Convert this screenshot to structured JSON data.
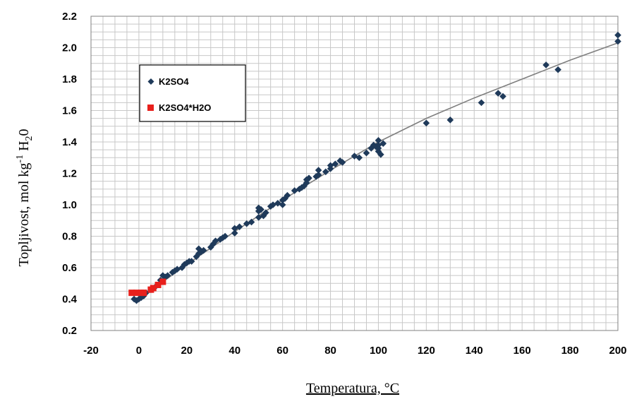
{
  "chart_data": {
    "type": "scatter",
    "xlabel": "Temperatura, °C",
    "ylabel": "Topljivost, mol kg",
    "ylabel_sup": "-1",
    "ylabel_tail": " H",
    "ylabel_sub": "2",
    "ylabel_end": "0",
    "xlim": [
      -20,
      200
    ],
    "ylim": [
      0.2,
      2.2
    ],
    "xticks": [
      "-20",
      "0",
      "20",
      "40",
      "60",
      "80",
      "100",
      "120",
      "140",
      "160",
      "180",
      "200"
    ],
    "yticks": [
      "0.2",
      "0.4",
      "0.6",
      "0.8",
      "1.0",
      "1.2",
      "1.4",
      "1.6",
      "1.8",
      "2.0",
      "2.2"
    ],
    "grid": true,
    "legend_position": "top-left",
    "series": [
      {
        "name": "K2SO4",
        "color": "#1f3a5a",
        "marker": "diamond",
        "points": [
          [
            -2,
            0.4
          ],
          [
            -1,
            0.39
          ],
          [
            0,
            0.4
          ],
          [
            1,
            0.41
          ],
          [
            2,
            0.42
          ],
          [
            3,
            0.44
          ],
          [
            5,
            0.46
          ],
          [
            7,
            0.48
          ],
          [
            9,
            0.52
          ],
          [
            10,
            0.55
          ],
          [
            11,
            0.54
          ],
          [
            12,
            0.55
          ],
          [
            14,
            0.57
          ],
          [
            15,
            0.58
          ],
          [
            16,
            0.59
          ],
          [
            18,
            0.6
          ],
          [
            19,
            0.62
          ],
          [
            20,
            0.63
          ],
          [
            21,
            0.64
          ],
          [
            22,
            0.64
          ],
          [
            24,
            0.67
          ],
          [
            25,
            0.69
          ],
          [
            25,
            0.72
          ],
          [
            26,
            0.7
          ],
          [
            27,
            0.71
          ],
          [
            30,
            0.73
          ],
          [
            31,
            0.75
          ],
          [
            32,
            0.77
          ],
          [
            34,
            0.78
          ],
          [
            35,
            0.79
          ],
          [
            36,
            0.8
          ],
          [
            40,
            0.82
          ],
          [
            40,
            0.85
          ],
          [
            42,
            0.86
          ],
          [
            45,
            0.88
          ],
          [
            47,
            0.89
          ],
          [
            50,
            0.92
          ],
          [
            50,
            0.96
          ],
          [
            50,
            0.98
          ],
          [
            51,
            0.97
          ],
          [
            52,
            0.93
          ],
          [
            53,
            0.95
          ],
          [
            55,
            0.99
          ],
          [
            56,
            1.0
          ],
          [
            58,
            1.01
          ],
          [
            60,
            1.0
          ],
          [
            60,
            1.03
          ],
          [
            61,
            1.04
          ],
          [
            62,
            1.06
          ],
          [
            65,
            1.09
          ],
          [
            67,
            1.1
          ],
          [
            68,
            1.11
          ],
          [
            69,
            1.12
          ],
          [
            70,
            1.14
          ],
          [
            70,
            1.16
          ],
          [
            71,
            1.17
          ],
          [
            74,
            1.18
          ],
          [
            75,
            1.19
          ],
          [
            75,
            1.22
          ],
          [
            78,
            1.21
          ],
          [
            80,
            1.23
          ],
          [
            80,
            1.25
          ],
          [
            82,
            1.26
          ],
          [
            84,
            1.28
          ],
          [
            85,
            1.27
          ],
          [
            90,
            1.31
          ],
          [
            92,
            1.3
          ],
          [
            95,
            1.33
          ],
          [
            97,
            1.36
          ],
          [
            98,
            1.38
          ],
          [
            99,
            1.37
          ],
          [
            100,
            1.34
          ],
          [
            100,
            1.36
          ],
          [
            100,
            1.38
          ],
          [
            100,
            1.41
          ],
          [
            101,
            1.32
          ],
          [
            102,
            1.39
          ],
          [
            120,
            1.52
          ],
          [
            130,
            1.54
          ],
          [
            143,
            1.65
          ],
          [
            150,
            1.71
          ],
          [
            152,
            1.69
          ],
          [
            170,
            1.89
          ],
          [
            175,
            1.86
          ],
          [
            200,
            2.04
          ],
          [
            200,
            2.08
          ]
        ]
      },
      {
        "name": "K2SO4*H2O",
        "color": "#e8201c",
        "marker": "square",
        "points": [
          [
            -3,
            0.44
          ],
          [
            -1,
            0.44
          ],
          [
            1,
            0.44
          ],
          [
            2,
            0.44
          ],
          [
            5,
            0.46
          ],
          [
            6,
            0.47
          ],
          [
            8,
            0.49
          ],
          [
            10,
            0.51
          ]
        ]
      }
    ],
    "trend_line": {
      "color": "#7f7f7f",
      "x": [
        -2,
        10,
        20,
        40,
        60,
        80,
        100,
        120,
        140,
        160,
        180,
        200
      ],
      "y": [
        0.39,
        0.51,
        0.62,
        0.83,
        1.03,
        1.22,
        1.4,
        1.55,
        1.68,
        1.8,
        1.92,
        2.03
      ]
    }
  }
}
